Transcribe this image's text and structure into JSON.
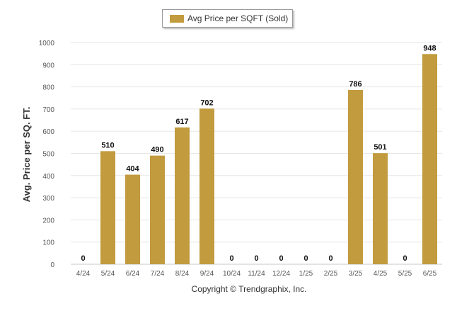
{
  "colors": {
    "bar": "#C29B3E",
    "grid": "#e6e6e6",
    "axis_text": "#555555",
    "label_text": "#111111"
  },
  "chart_data": {
    "type": "bar",
    "title": "",
    "xlabel": "",
    "ylabel": "Avg. Price per SQ. FT.",
    "ylim": [
      0,
      1000
    ],
    "yticks": [
      0,
      100,
      200,
      300,
      400,
      500,
      600,
      700,
      800,
      900,
      1000
    ],
    "grid": true,
    "legend_position": "top-center",
    "categories": [
      "4/24",
      "5/24",
      "6/24",
      "7/24",
      "8/24",
      "9/24",
      "10/24",
      "11/24",
      "12/24",
      "1/25",
      "2/25",
      "3/25",
      "4/25",
      "5/25",
      "6/25"
    ],
    "series": [
      {
        "name": "Avg Price per SQFT (Sold)",
        "values": [
          0,
          510,
          404,
          490,
          617,
          702,
          0,
          0,
          0,
          0,
          0,
          786,
          501,
          0,
          948
        ]
      }
    ],
    "data_labels": [
      "0",
      "510",
      "404",
      "490",
      "617",
      "702",
      "0",
      "0",
      "0",
      "0",
      "0",
      "786",
      "501",
      "0",
      "948"
    ]
  },
  "footer": {
    "copyright": "Copyright © Trendgraphix, Inc."
  }
}
